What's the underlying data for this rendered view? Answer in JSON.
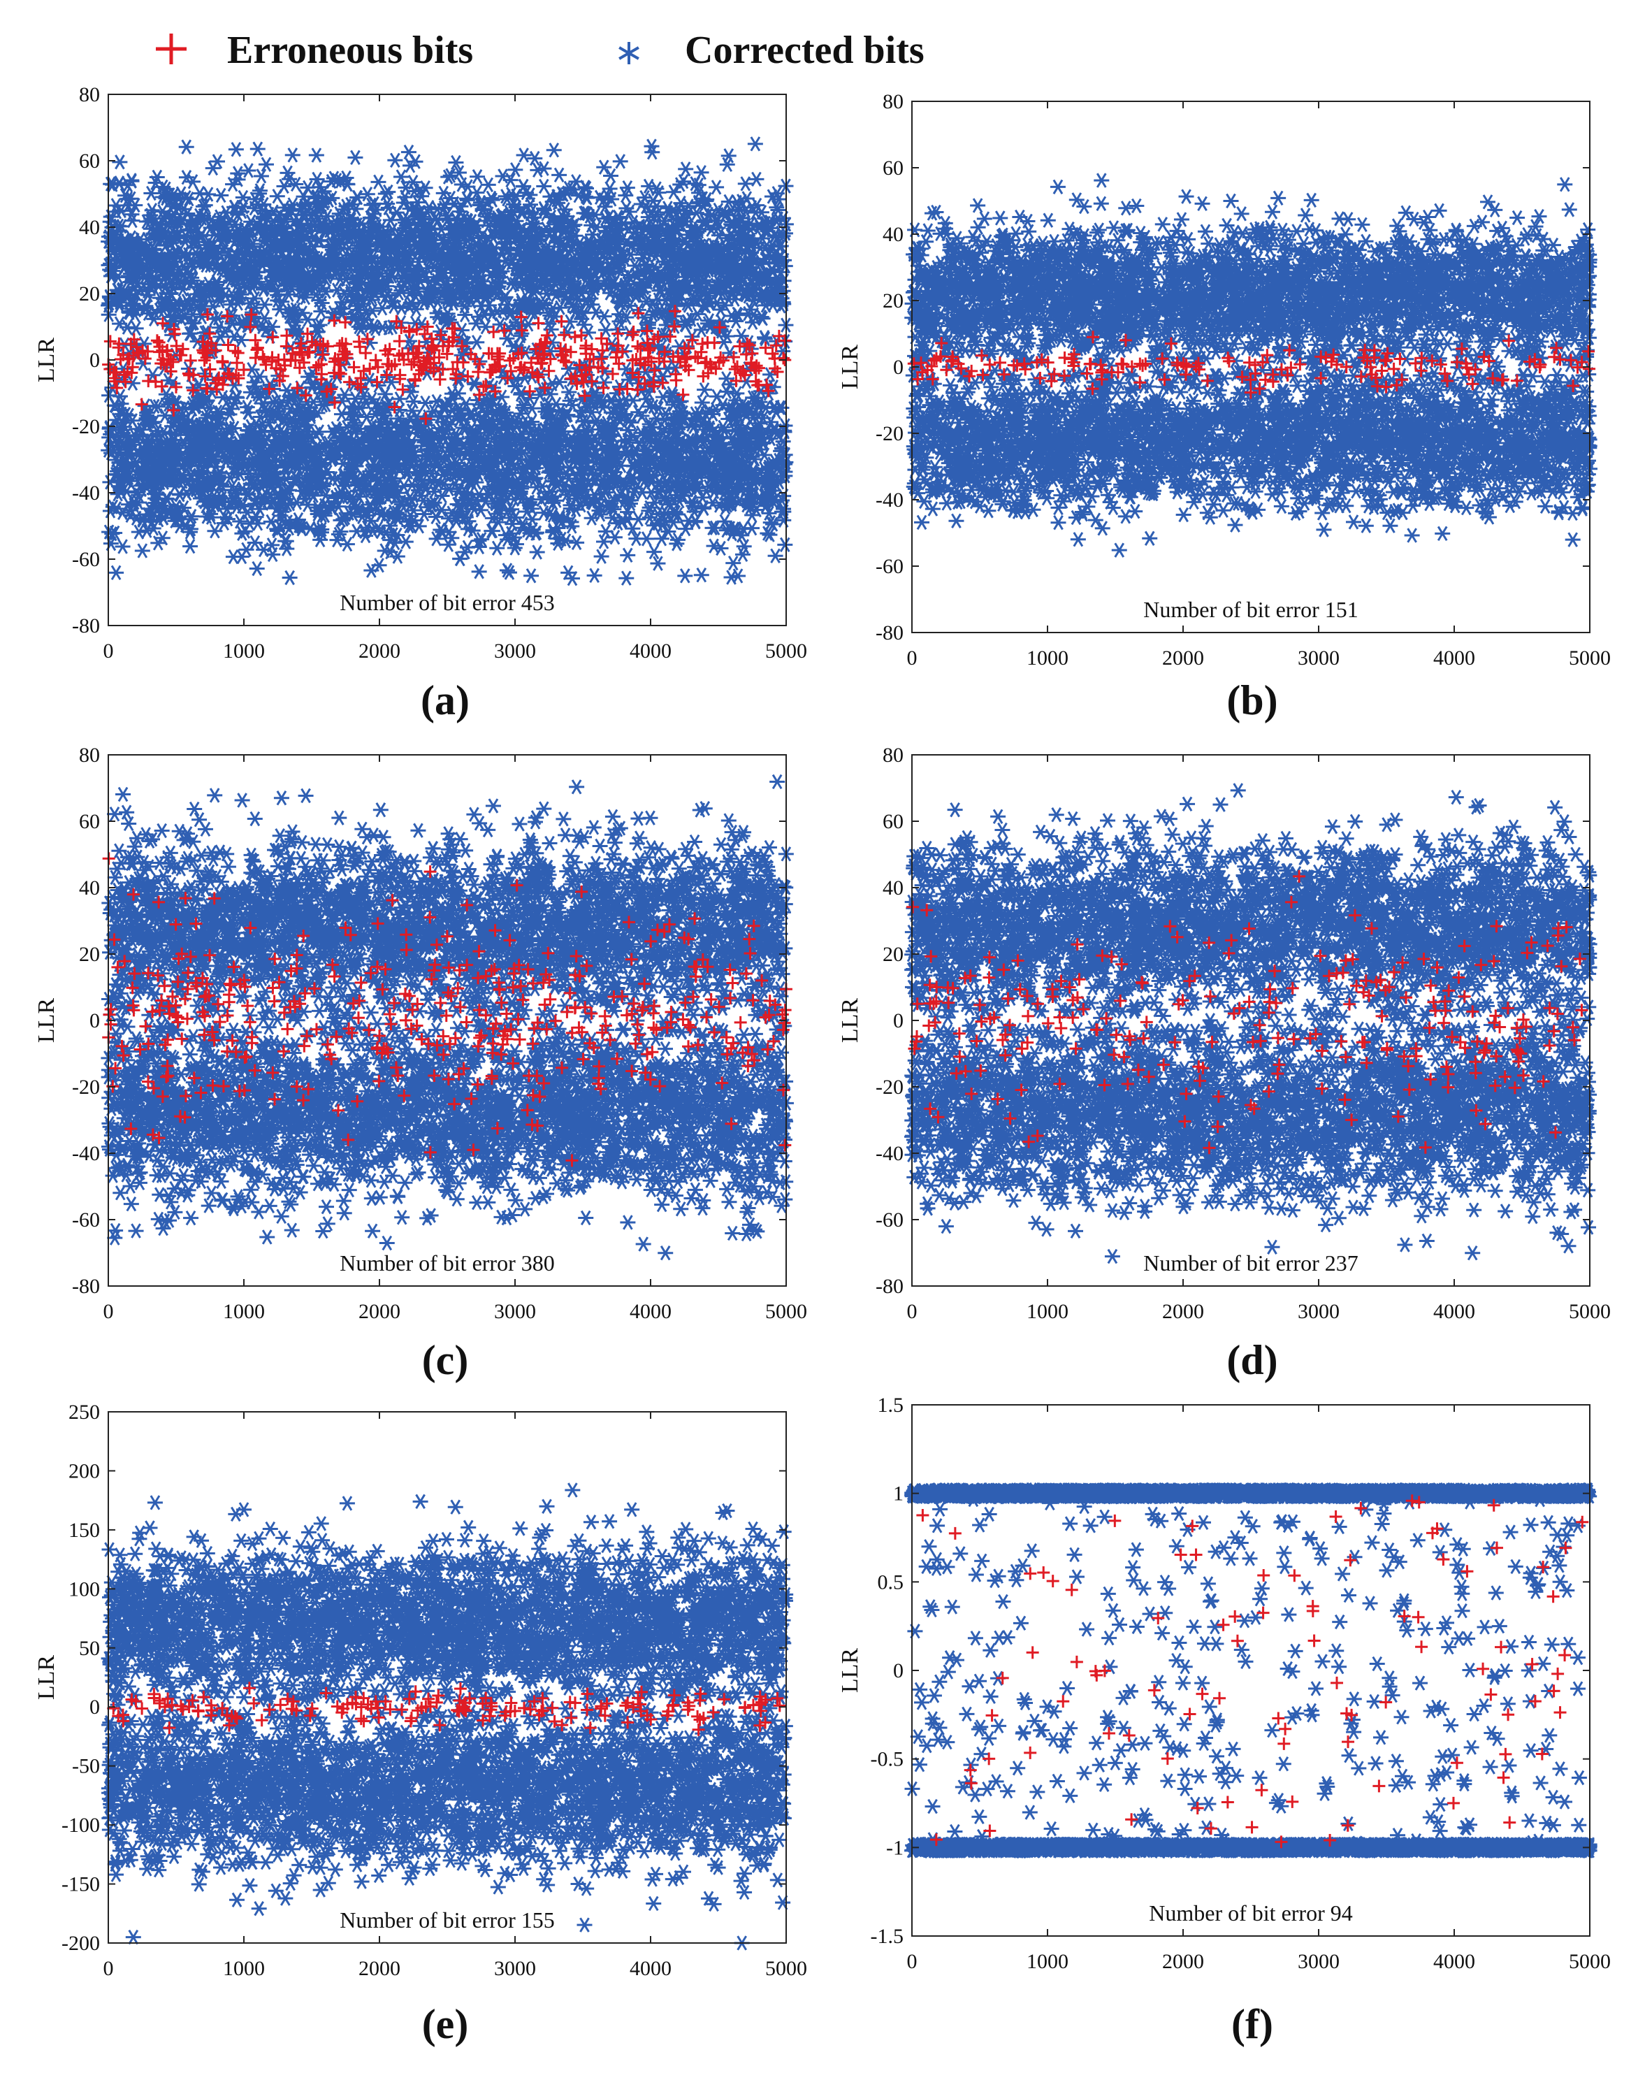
{
  "legend": {
    "items": [
      {
        "label": "Erroneous bits",
        "color": "#e01c24",
        "marker": "plus-marker"
      },
      {
        "label": "Corrected bits",
        "color": "#2f5fb3",
        "marker": "asterisk-marker"
      }
    ]
  },
  "chart_data": [
    {
      "type": "scatter",
      "caption": "(a)",
      "ylabel": "LLR",
      "annotation": "Number of bit error 453",
      "xlim": [
        0,
        5000
      ],
      "ylim": [
        -80,
        80
      ],
      "xticks": [
        0,
        1000,
        2000,
        3000,
        4000,
        5000
      ],
      "yticks": [
        -80,
        -60,
        -40,
        -20,
        0,
        20,
        40,
        60,
        80
      ],
      "series": [
        {
          "name": "Corrected bits",
          "color": "#2f5fb3",
          "n_points": 5000,
          "clusters": [
            {
              "center": 30,
              "spread": 12,
              "share": 0.5
            },
            {
              "center": -30,
              "spread": 12,
              "share": 0.5
            }
          ],
          "max_abs": 66
        },
        {
          "name": "Erroneous bits",
          "color": "#e01c24",
          "n_points": 453,
          "center": 0,
          "spread": 5,
          "max_abs": 18
        }
      ]
    },
    {
      "type": "scatter",
      "caption": "(b)",
      "ylabel": "LLR",
      "annotation": "Number of bit error 151",
      "xlim": [
        0,
        5000
      ],
      "ylim": [
        -80,
        80
      ],
      "xticks": [
        0,
        1000,
        2000,
        3000,
        4000,
        5000
      ],
      "yticks": [
        -80,
        -60,
        -40,
        -20,
        0,
        20,
        40,
        60,
        80
      ],
      "series": [
        {
          "name": "Corrected bits",
          "color": "#2f5fb3",
          "n_points": 5000,
          "clusters": [
            {
              "center": 22,
              "spread": 10,
              "share": 0.5
            },
            {
              "center": -22,
              "spread": 10,
              "share": 0.5
            }
          ],
          "max_abs": 64
        },
        {
          "name": "Erroneous bits",
          "color": "#e01c24",
          "n_points": 151,
          "center": 0,
          "spread": 3,
          "max_abs": 10
        }
      ]
    },
    {
      "type": "scatter",
      "caption": "(c)",
      "ylabel": "LLR",
      "annotation": "Number of bit error 380",
      "xlim": [
        0,
        5000
      ],
      "ylim": [
        -80,
        80
      ],
      "xticks": [
        0,
        1000,
        2000,
        3000,
        4000,
        5000
      ],
      "yticks": [
        -80,
        -60,
        -40,
        -20,
        0,
        20,
        40,
        60,
        80
      ],
      "series": [
        {
          "name": "Corrected bits",
          "color": "#2f5fb3",
          "n_points": 5000,
          "clusters": [
            {
              "center": 28,
              "spread": 13,
              "share": 0.5
            },
            {
              "center": -28,
              "spread": 13,
              "share": 0.5
            }
          ],
          "max_abs": 72
        },
        {
          "name": "Erroneous bits",
          "color": "#e01c24",
          "n_points": 380,
          "center": 0,
          "spread": 16,
          "max_abs": 52
        }
      ]
    },
    {
      "type": "scatter",
      "caption": "(d)",
      "ylabel": "LLR",
      "annotation": "Number of bit error 237",
      "xlim": [
        0,
        5000
      ],
      "ylim": [
        -80,
        80
      ],
      "xticks": [
        0,
        1000,
        2000,
        3000,
        4000,
        5000
      ],
      "yticks": [
        -80,
        -60,
        -40,
        -20,
        0,
        20,
        40,
        60,
        80
      ],
      "series": [
        {
          "name": "Corrected bits",
          "color": "#2f5fb3",
          "n_points": 5000,
          "clusters": [
            {
              "center": 28,
              "spread": 13,
              "share": 0.5
            },
            {
              "center": -28,
              "spread": 13,
              "share": 0.5
            }
          ],
          "max_abs": 80
        },
        {
          "name": "Erroneous bits",
          "color": "#e01c24",
          "n_points": 237,
          "center": 0,
          "spread": 15,
          "max_abs": 45
        }
      ]
    },
    {
      "type": "scatter",
      "caption": "(e)",
      "ylabel": "LLR",
      "annotation": "Number of bit error 155",
      "xlim": [
        0,
        5000
      ],
      "ylim": [
        -200,
        250
      ],
      "xticks": [
        0,
        1000,
        2000,
        3000,
        4000,
        5000
      ],
      "yticks": [
        -200,
        -150,
        -100,
        -50,
        0,
        50,
        100,
        150,
        200,
        250
      ],
      "series": [
        {
          "name": "Corrected bits",
          "color": "#2f5fb3",
          "n_points": 5000,
          "clusters": [
            {
              "center": 70,
              "spread": 32,
              "share": 0.5
            },
            {
              "center": -70,
              "spread": 32,
              "share": 0.5
            }
          ],
          "max_abs": 205
        },
        {
          "name": "Erroneous bits",
          "color": "#e01c24",
          "n_points": 155,
          "center": 0,
          "spread": 8,
          "max_abs": 25
        }
      ]
    },
    {
      "type": "scatter",
      "caption": "(f)",
      "ylabel": "LLR",
      "annotation": "Number of bit error 94",
      "xlim": [
        0,
        5000
      ],
      "ylim": [
        -1.5,
        1.5
      ],
      "xticks": [
        0,
        1000,
        2000,
        3000,
        4000,
        5000
      ],
      "yticks": [
        -1.5,
        -1,
        -0.5,
        0,
        0.5,
        1,
        1.5
      ],
      "series": [
        {
          "name": "Corrected bits",
          "color": "#2f5fb3",
          "n_points": 5000,
          "saturated_levels": [
            1,
            -1
          ],
          "scattered_share": 0.08,
          "max_abs": 1
        },
        {
          "name": "Erroneous bits",
          "color": "#e01c24",
          "n_points": 94,
          "distribution": "uniform",
          "max_abs": 1
        }
      ]
    }
  ]
}
